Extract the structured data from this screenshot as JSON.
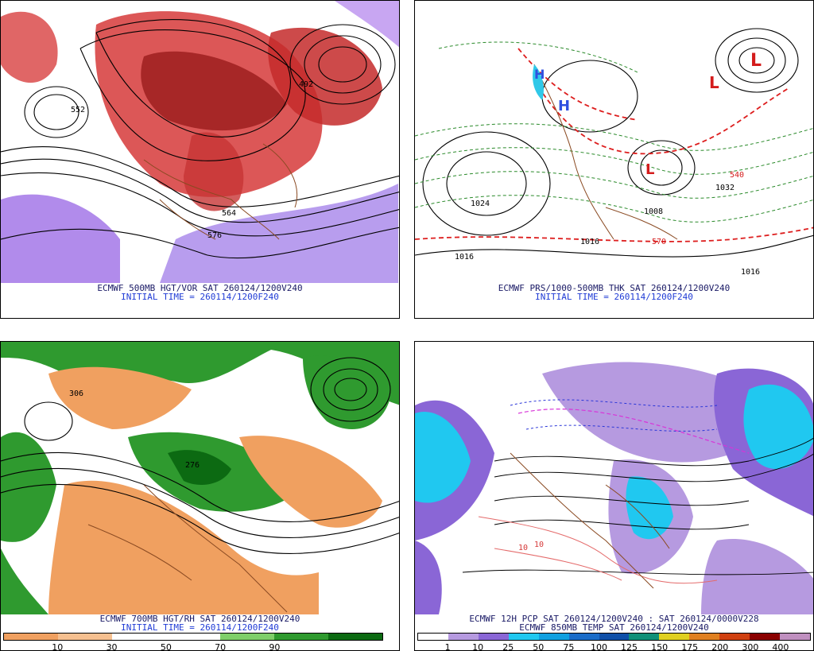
{
  "panels": {
    "top_left": {
      "title": "ECMWF 500MB HGT/VOR SAT 260124/1200V240",
      "init": "INITIAL TIME = 260114/1200F240",
      "contour_labels": [
        "552",
        "492",
        "576",
        "564"
      ]
    },
    "top_right": {
      "title": "ECMWF PRS/1000-500MB THK SAT 260124/1200V240",
      "init": "INITIAL TIME = 260114/1200F240",
      "contour_labels": [
        "1024",
        "1032",
        "1016",
        "1008",
        "540",
        "570",
        "1016",
        "1016"
      ],
      "highs_lows": [
        "L",
        "L",
        "L",
        "H",
        "H"
      ]
    },
    "bottom_left": {
      "title": "ECMWF 700MB HGT/RH SAT 260124/1200V240",
      "init": "INITIAL TIME = 260114/1200F240",
      "colorbar_ticks": [
        "10",
        "30",
        "50",
        "70",
        "90"
      ],
      "colorbar_colors": [
        "#f0a060",
        "#f6c090",
        "#ffffff",
        "#ffffff",
        "#7fcf6a",
        "#2f9a2f",
        "#0c6a12"
      ]
    },
    "bottom_right": {
      "title": "ECMWF 12H PCP SAT 260124/1200V240 : SAT 260124/0000V228",
      "subtitle": "ECMWF 850MB TEMP SAT 260124/1200V240",
      "colorbar_ticks": [
        "1",
        "10",
        "25",
        "50",
        "75",
        "100",
        "125",
        "150",
        "175",
        "200",
        "300",
        "400"
      ],
      "colorbar_colors": [
        "#ffffff",
        "#b69ae0",
        "#8a66d6",
        "#20c8f0",
        "#10a0e0",
        "#1a6cc8",
        "#1050a8",
        "#109078",
        "#e0d020",
        "#e08020",
        "#d04010",
        "#8a0000",
        "#c090c0"
      ]
    }
  }
}
